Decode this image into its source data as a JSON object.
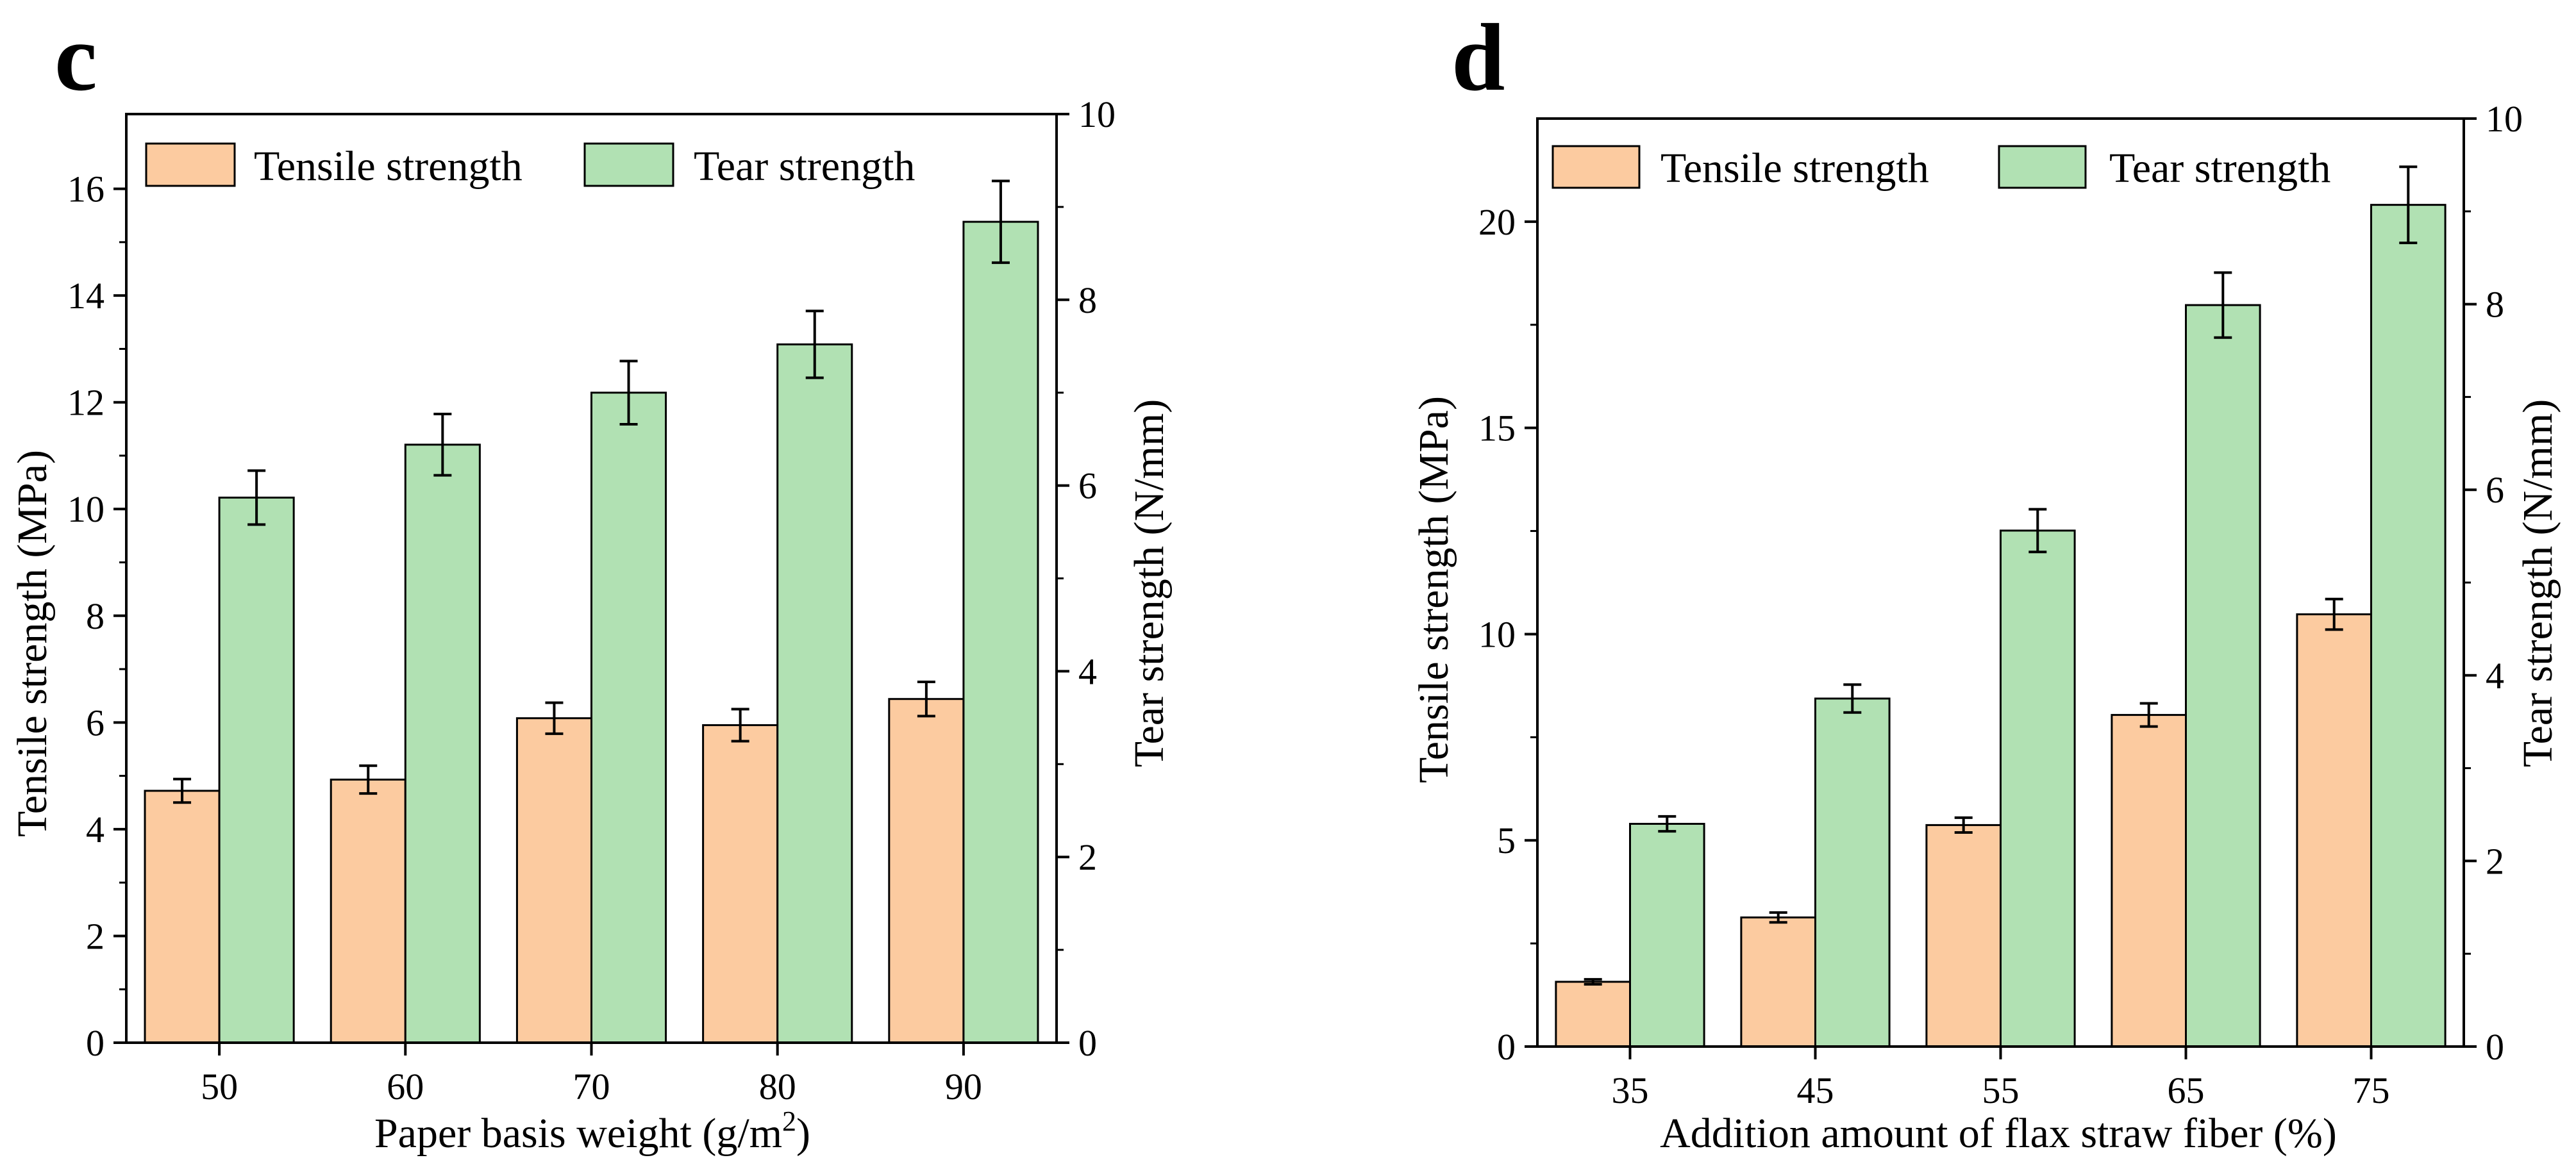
{
  "colors": {
    "tensile": "#fccba0",
    "tear": "#b1e1b3",
    "stroke": "#000000"
  },
  "chart_data": [
    {
      "type": "bar",
      "panel": "c",
      "categories": [
        "50",
        "60",
        "70",
        "80",
        "90"
      ],
      "xlabel_main": "Paper basis weight (g/m",
      "xlabel_sup": "2",
      "xlabel_end": ")",
      "ylabel": "Tensile strength (MPa)",
      "y2label": "Tear strength (N/mm)",
      "ylim": [
        0,
        17.4
      ],
      "y2lim": [
        0,
        10
      ],
      "yticks": [
        "0",
        "2",
        "4",
        "6",
        "8",
        "10",
        "12",
        "14",
        "16"
      ],
      "y2ticks": [
        "0",
        "2",
        "4",
        "6",
        "8",
        "10"
      ],
      "series": [
        {
          "name": "Tensile strength",
          "axis": "left",
          "values": [
            4.72,
            4.93,
            6.08,
            5.95,
            6.44
          ],
          "errors": [
            0.22,
            0.26,
            0.29,
            0.3,
            0.32
          ]
        },
        {
          "name": "Tear strength",
          "axis": "right",
          "values": [
            5.87,
            6.44,
            7.0,
            7.52,
            8.84
          ],
          "errors": [
            0.29,
            0.33,
            0.34,
            0.36,
            0.44
          ]
        }
      ],
      "legend": "top"
    },
    {
      "type": "bar",
      "panel": "d",
      "categories": [
        "35",
        "45",
        "55",
        "65",
        "75"
      ],
      "xlabel_main": "Addition amount of flax straw fiber (%)",
      "xlabel_sup": "",
      "xlabel_end": "",
      "ylabel": "Tensile strength (MPa)",
      "y2label": "Tear strength (N/mm)",
      "ylim": [
        0,
        22.5
      ],
      "y2lim": [
        0,
        10
      ],
      "yticks": [
        "0",
        "5",
        "10",
        "15",
        "20"
      ],
      "y2ticks": [
        "0",
        "2",
        "4",
        "6",
        "8",
        "10"
      ],
      "series": [
        {
          "name": "Tensile strength",
          "axis": "left",
          "values": [
            1.57,
            3.13,
            5.37,
            8.04,
            10.48
          ],
          "errors": [
            0.06,
            0.12,
            0.18,
            0.28,
            0.37
          ]
        },
        {
          "name": "Tear strength",
          "axis": "right",
          "values": [
            2.4,
            3.75,
            5.56,
            7.99,
            9.07
          ],
          "errors": [
            0.08,
            0.15,
            0.23,
            0.35,
            0.41
          ]
        }
      ],
      "legend": "top"
    }
  ]
}
